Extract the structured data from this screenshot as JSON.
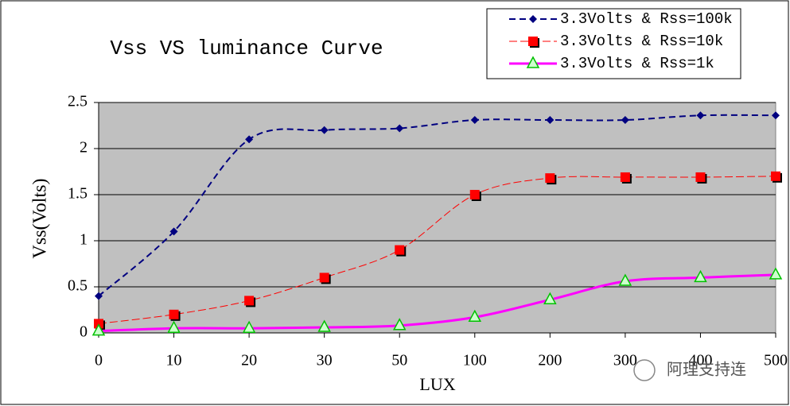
{
  "chart_data": {
    "type": "line",
    "title": "Vss VS luminance Curve",
    "x_label": "LUX",
    "y_label": "Vss(Volts)",
    "categories": [
      "0",
      "10",
      "20",
      "30",
      "50",
      "100",
      "200",
      "300",
      "400",
      "500"
    ],
    "series": [
      {
        "name": "3.3Volts & Rss=100k",
        "color": "#000080",
        "marker": "diamond",
        "dash": "8,5",
        "width": 2,
        "values": [
          0.4,
          1.1,
          2.1,
          2.2,
          2.22,
          2.31,
          2.31,
          2.31,
          2.36,
          2.36
        ]
      },
      {
        "name": "3.3Volts & Rss=10k",
        "color": "#ff0000",
        "marker": "square",
        "dash": "10,4",
        "width": 1,
        "values": [
          0.1,
          0.2,
          0.35,
          0.6,
          0.9,
          1.5,
          1.68,
          1.69,
          1.69,
          1.7
        ]
      },
      {
        "name": "3.3Volts & Rss=1k",
        "color": "#ff00ff",
        "marker": "triangle",
        "dash": "none",
        "width": 3,
        "values": [
          0.02,
          0.05,
          0.05,
          0.06,
          0.08,
          0.17,
          0.36,
          0.56,
          0.6,
          0.63
        ]
      }
    ],
    "ylim": [
      0,
      2.5
    ],
    "yticks": [
      0,
      0.5,
      1,
      1.5,
      2,
      2.5
    ],
    "grid": true,
    "plot_background": "#c0c0c0",
    "legend": "top-right",
    "watermark": "阿理支持连"
  }
}
